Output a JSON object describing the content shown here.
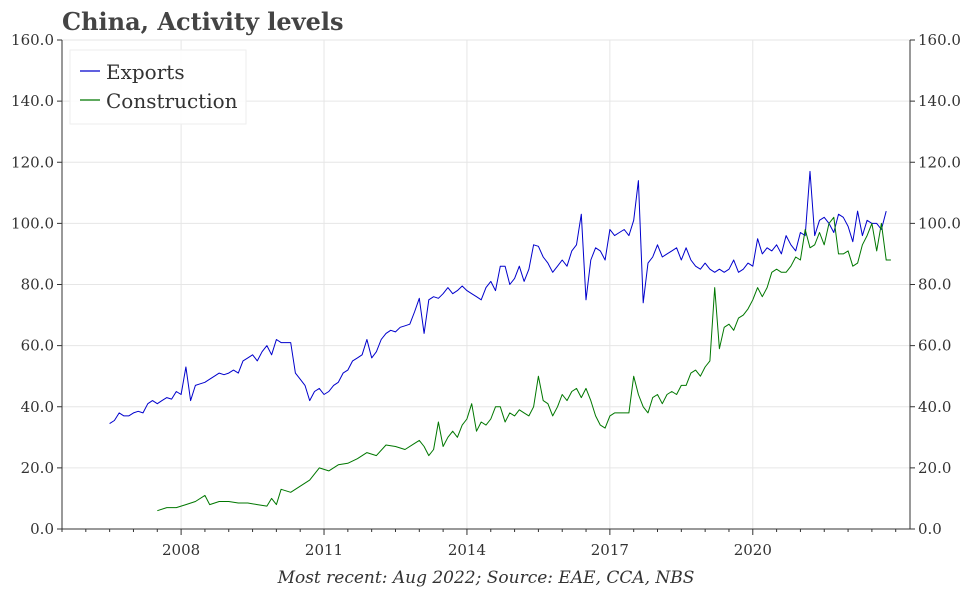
{
  "chart_data": {
    "type": "line",
    "title": "China, Activity levels",
    "footer": "Most recent: Aug 2022; Source: EAE, CCA, NBS",
    "y_ticks": [
      "0.0",
      "20.0",
      "40.0",
      "60.0",
      "80.0",
      "100.0",
      "120.0",
      "140.0",
      "160.0"
    ],
    "x_ticks": [
      "2008",
      "2011",
      "2014",
      "2017",
      "2020"
    ],
    "ylim": [
      0,
      160
    ],
    "xlim": [
      2005.5,
      2023.3
    ],
    "grid": true,
    "legend": "top-left",
    "series": [
      {
        "name": "Exports",
        "color": "#0000cc",
        "points": [
          [
            2006.5,
            34.5
          ],
          [
            2006.6,
            35.5
          ],
          [
            2006.7,
            38
          ],
          [
            2006.8,
            37
          ],
          [
            2006.9,
            37
          ],
          [
            2007.0,
            38
          ],
          [
            2007.1,
            38.5
          ],
          [
            2007.2,
            38
          ],
          [
            2007.3,
            41
          ],
          [
            2007.4,
            42
          ],
          [
            2007.5,
            41
          ],
          [
            2007.6,
            42
          ],
          [
            2007.7,
            43
          ],
          [
            2007.8,
            42.5
          ],
          [
            2007.9,
            45
          ],
          [
            2008.0,
            44
          ],
          [
            2008.1,
            53
          ],
          [
            2008.2,
            42
          ],
          [
            2008.3,
            47
          ],
          [
            2008.4,
            47.5
          ],
          [
            2008.5,
            48
          ],
          [
            2008.6,
            49
          ],
          [
            2008.7,
            50
          ],
          [
            2008.8,
            51
          ],
          [
            2008.9,
            50.5
          ],
          [
            2009.0,
            51
          ],
          [
            2009.1,
            52
          ],
          [
            2009.2,
            51
          ],
          [
            2009.3,
            55
          ],
          [
            2009.4,
            56
          ],
          [
            2009.5,
            57
          ],
          [
            2009.6,
            55
          ],
          [
            2009.7,
            58
          ],
          [
            2009.8,
            60
          ],
          [
            2009.9,
            57
          ],
          [
            2010.0,
            62
          ],
          [
            2010.1,
            61
          ],
          [
            2010.2,
            61
          ],
          [
            2010.3,
            61
          ],
          [
            2010.4,
            51
          ],
          [
            2010.5,
            49
          ],
          [
            2010.6,
            47
          ],
          [
            2010.7,
            42
          ],
          [
            2010.8,
            45
          ],
          [
            2010.9,
            46
          ],
          [
            2011.0,
            44
          ],
          [
            2011.1,
            45
          ],
          [
            2011.2,
            47
          ],
          [
            2011.3,
            48
          ],
          [
            2011.4,
            51
          ],
          [
            2011.5,
            52
          ],
          [
            2011.6,
            55
          ],
          [
            2011.7,
            56
          ],
          [
            2011.8,
            57
          ],
          [
            2011.9,
            62
          ],
          [
            2012.0,
            56
          ],
          [
            2012.1,
            58
          ],
          [
            2012.2,
            62
          ],
          [
            2012.3,
            64
          ],
          [
            2012.4,
            65
          ],
          [
            2012.5,
            64.5
          ],
          [
            2012.6,
            66
          ],
          [
            2012.7,
            66.5
          ],
          [
            2012.8,
            67
          ],
          [
            2012.9,
            71
          ],
          [
            2013.0,
            75.5
          ],
          [
            2013.1,
            64
          ],
          [
            2013.2,
            75
          ],
          [
            2013.3,
            76
          ],
          [
            2013.4,
            75.5
          ],
          [
            2013.5,
            77
          ],
          [
            2013.6,
            79
          ],
          [
            2013.7,
            77
          ],
          [
            2013.8,
            78
          ],
          [
            2013.9,
            79.5
          ],
          [
            2014.0,
            78
          ],
          [
            2014.1,
            77
          ],
          [
            2014.2,
            76
          ],
          [
            2014.3,
            75
          ],
          [
            2014.4,
            79
          ],
          [
            2014.5,
            81
          ],
          [
            2014.6,
            78
          ],
          [
            2014.7,
            86
          ],
          [
            2014.8,
            86
          ],
          [
            2014.9,
            80
          ],
          [
            2015.0,
            82
          ],
          [
            2015.1,
            86
          ],
          [
            2015.2,
            81
          ],
          [
            2015.3,
            85
          ],
          [
            2015.4,
            93
          ],
          [
            2015.5,
            92.5
          ],
          [
            2015.6,
            89
          ],
          [
            2015.7,
            87
          ],
          [
            2015.8,
            84
          ],
          [
            2015.9,
            86
          ],
          [
            2016.0,
            88
          ],
          [
            2016.1,
            86
          ],
          [
            2016.2,
            91
          ],
          [
            2016.3,
            93
          ],
          [
            2016.4,
            103
          ],
          [
            2016.5,
            75
          ],
          [
            2016.6,
            88
          ],
          [
            2016.7,
            92
          ],
          [
            2016.8,
            91
          ],
          [
            2016.9,
            88
          ],
          [
            2017.0,
            98
          ],
          [
            2017.1,
            96
          ],
          [
            2017.2,
            97
          ],
          [
            2017.3,
            98
          ],
          [
            2017.4,
            96
          ],
          [
            2017.5,
            101
          ],
          [
            2017.6,
            114
          ],
          [
            2017.7,
            74
          ],
          [
            2017.8,
            87
          ],
          [
            2017.9,
            89
          ],
          [
            2018.0,
            93
          ],
          [
            2018.1,
            89
          ],
          [
            2018.2,
            90
          ],
          [
            2018.3,
            91
          ],
          [
            2018.4,
            92
          ],
          [
            2018.5,
            88
          ],
          [
            2018.6,
            92
          ],
          [
            2018.7,
            88
          ],
          [
            2018.8,
            86
          ],
          [
            2018.9,
            85
          ],
          [
            2019.0,
            87
          ],
          [
            2019.1,
            85
          ],
          [
            2019.2,
            84
          ],
          [
            2019.3,
            85
          ],
          [
            2019.4,
            84
          ],
          [
            2019.5,
            85
          ],
          [
            2019.6,
            88
          ],
          [
            2019.7,
            84
          ],
          [
            2019.8,
            85
          ],
          [
            2019.9,
            87
          ],
          [
            2020.0,
            86
          ],
          [
            2020.1,
            95
          ],
          [
            2020.2,
            90
          ],
          [
            2020.3,
            92
          ],
          [
            2020.4,
            91
          ],
          [
            2020.5,
            93
          ],
          [
            2020.6,
            90
          ],
          [
            2020.7,
            96
          ],
          [
            2020.8,
            93
          ],
          [
            2020.9,
            91
          ],
          [
            2021.0,
            97
          ],
          [
            2021.1,
            96
          ],
          [
            2021.2,
            117
          ],
          [
            2021.3,
            96
          ],
          [
            2021.4,
            101
          ],
          [
            2021.5,
            102
          ],
          [
            2021.6,
            100
          ],
          [
            2021.7,
            97
          ],
          [
            2021.8,
            103
          ],
          [
            2021.9,
            102
          ],
          [
            2022.0,
            99
          ],
          [
            2022.1,
            94
          ],
          [
            2022.2,
            104
          ],
          [
            2022.3,
            96
          ],
          [
            2022.4,
            101
          ],
          [
            2022.5,
            100
          ],
          [
            2022.6,
            100
          ],
          [
            2022.7,
            98
          ],
          [
            2022.8,
            104
          ]
        ]
      },
      {
        "name": "Construction",
        "color": "#007700",
        "points": [
          [
            2007.5,
            6
          ],
          [
            2007.7,
            7
          ],
          [
            2007.9,
            7
          ],
          [
            2008.1,
            8
          ],
          [
            2008.3,
            9
          ],
          [
            2008.5,
            11
          ],
          [
            2008.6,
            8
          ],
          [
            2008.8,
            9
          ],
          [
            2009.0,
            9
          ],
          [
            2009.2,
            8.5
          ],
          [
            2009.4,
            8.5
          ],
          [
            2009.6,
            8
          ],
          [
            2009.8,
            7.5
          ],
          [
            2009.9,
            10
          ],
          [
            2010.0,
            8
          ],
          [
            2010.1,
            13
          ],
          [
            2010.3,
            12
          ],
          [
            2010.5,
            14
          ],
          [
            2010.7,
            16
          ],
          [
            2010.9,
            20
          ],
          [
            2011.1,
            19
          ],
          [
            2011.3,
            21
          ],
          [
            2011.5,
            21.5
          ],
          [
            2011.7,
            23
          ],
          [
            2011.9,
            25
          ],
          [
            2012.1,
            24
          ],
          [
            2012.3,
            27.5
          ],
          [
            2012.5,
            27
          ],
          [
            2012.7,
            26
          ],
          [
            2012.9,
            28
          ],
          [
            2013.0,
            29
          ],
          [
            2013.1,
            27
          ],
          [
            2013.2,
            24
          ],
          [
            2013.3,
            26
          ],
          [
            2013.4,
            35
          ],
          [
            2013.5,
            27
          ],
          [
            2013.6,
            30
          ],
          [
            2013.7,
            32
          ],
          [
            2013.8,
            30
          ],
          [
            2013.9,
            34
          ],
          [
            2014.0,
            36
          ],
          [
            2014.1,
            41
          ],
          [
            2014.2,
            32
          ],
          [
            2014.3,
            35
          ],
          [
            2014.4,
            34
          ],
          [
            2014.5,
            36
          ],
          [
            2014.6,
            40
          ],
          [
            2014.7,
            40
          ],
          [
            2014.8,
            35
          ],
          [
            2014.9,
            38
          ],
          [
            2015.0,
            37
          ],
          [
            2015.1,
            39
          ],
          [
            2015.2,
            38
          ],
          [
            2015.3,
            37
          ],
          [
            2015.4,
            40
          ],
          [
            2015.5,
            50
          ],
          [
            2015.6,
            42
          ],
          [
            2015.7,
            41
          ],
          [
            2015.8,
            37
          ],
          [
            2015.9,
            40
          ],
          [
            2016.0,
            44
          ],
          [
            2016.1,
            42
          ],
          [
            2016.2,
            45
          ],
          [
            2016.3,
            46
          ],
          [
            2016.4,
            43
          ],
          [
            2016.5,
            46
          ],
          [
            2016.6,
            42
          ],
          [
            2016.7,
            37
          ],
          [
            2016.8,
            34
          ],
          [
            2016.9,
            33
          ],
          [
            2017.0,
            37
          ],
          [
            2017.1,
            38
          ],
          [
            2017.2,
            38
          ],
          [
            2017.3,
            38
          ],
          [
            2017.4,
            38
          ],
          [
            2017.5,
            50
          ],
          [
            2017.6,
            44
          ],
          [
            2017.7,
            40
          ],
          [
            2017.8,
            38
          ],
          [
            2017.9,
            43
          ],
          [
            2018.0,
            44
          ],
          [
            2018.1,
            41
          ],
          [
            2018.2,
            44
          ],
          [
            2018.3,
            45
          ],
          [
            2018.4,
            44
          ],
          [
            2018.5,
            47
          ],
          [
            2018.6,
            47
          ],
          [
            2018.7,
            51
          ],
          [
            2018.8,
            52
          ],
          [
            2018.9,
            50
          ],
          [
            2019.0,
            53
          ],
          [
            2019.1,
            55
          ],
          [
            2019.2,
            79
          ],
          [
            2019.3,
            59
          ],
          [
            2019.4,
            66
          ],
          [
            2019.5,
            67
          ],
          [
            2019.6,
            65
          ],
          [
            2019.7,
            69
          ],
          [
            2019.8,
            70
          ],
          [
            2019.9,
            72
          ],
          [
            2020.0,
            75
          ],
          [
            2020.1,
            79
          ],
          [
            2020.2,
            76
          ],
          [
            2020.3,
            79
          ],
          [
            2020.4,
            84
          ],
          [
            2020.5,
            85
          ],
          [
            2020.6,
            84
          ],
          [
            2020.7,
            84
          ],
          [
            2020.8,
            86
          ],
          [
            2020.9,
            89
          ],
          [
            2021.0,
            88
          ],
          [
            2021.1,
            98
          ],
          [
            2021.2,
            92
          ],
          [
            2021.3,
            93
          ],
          [
            2021.4,
            97
          ],
          [
            2021.5,
            93
          ],
          [
            2021.6,
            100
          ],
          [
            2021.7,
            102
          ],
          [
            2021.8,
            90
          ],
          [
            2021.9,
            90
          ],
          [
            2022.0,
            91
          ],
          [
            2022.1,
            86
          ],
          [
            2022.2,
            87
          ],
          [
            2022.3,
            93
          ],
          [
            2022.4,
            96
          ],
          [
            2022.5,
            100
          ],
          [
            2022.6,
            91
          ],
          [
            2022.7,
            100
          ],
          [
            2022.8,
            88
          ],
          [
            2022.9,
            88
          ]
        ]
      }
    ]
  }
}
